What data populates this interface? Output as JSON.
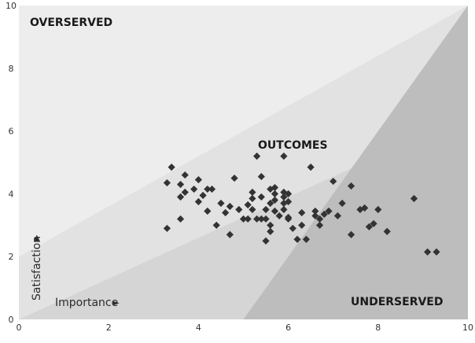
{
  "chart_data": {
    "type": "scatter",
    "title": "",
    "xlabel": "Importance",
    "ylabel": "Satisfaction",
    "xlabel_arrow": "►",
    "ylabel_arrow": "▲",
    "xlim": [
      0,
      10
    ],
    "ylim": [
      0,
      10
    ],
    "xticks": [
      0,
      2,
      4,
      6,
      8,
      10
    ],
    "yticks": [
      0,
      2,
      4,
      6,
      8,
      10
    ],
    "grid": false,
    "regions": {
      "overserved": "OVERSERVED",
      "outcomes": "OUTCOMES",
      "underserved": "UNDERSERVED"
    },
    "colors": {
      "overserved": "#ededed",
      "band_light": "#e2e2e2",
      "band_mid": "#d5d5d5",
      "underserved": "#bdbdbd",
      "marker": "#333333"
    },
    "points": [
      [
        3.3,
        4.35
      ],
      [
        3.4,
        4.85
      ],
      [
        3.3,
        2.9
      ],
      [
        3.6,
        3.9
      ],
      [
        3.6,
        4.3
      ],
      [
        3.7,
        4.05
      ],
      [
        3.7,
        4.6
      ],
      [
        3.6,
        3.2
      ],
      [
        3.9,
        4.15
      ],
      [
        4.0,
        3.75
      ],
      [
        4.0,
        4.45
      ],
      [
        4.1,
        3.95
      ],
      [
        4.2,
        4.15
      ],
      [
        4.2,
        3.45
      ],
      [
        4.3,
        4.15
      ],
      [
        4.4,
        3.0
      ],
      [
        4.5,
        3.7
      ],
      [
        4.6,
        3.4
      ],
      [
        4.7,
        3.6
      ],
      [
        4.7,
        2.7
      ],
      [
        4.8,
        4.5
      ],
      [
        4.9,
        3.5
      ],
      [
        5.0,
        3.2
      ],
      [
        5.1,
        3.2
      ],
      [
        5.1,
        3.65
      ],
      [
        5.2,
        3.5
      ],
      [
        5.2,
        4.05
      ],
      [
        5.2,
        3.85
      ],
      [
        5.3,
        3.2
      ],
      [
        5.3,
        5.2
      ],
      [
        5.4,
        3.2
      ],
      [
        5.4,
        4.55
      ],
      [
        5.4,
        3.9
      ],
      [
        5.5,
        3.5
      ],
      [
        5.5,
        2.5
      ],
      [
        5.5,
        3.2
      ],
      [
        5.6,
        3.0
      ],
      [
        5.6,
        2.8
      ],
      [
        5.6,
        3.7
      ],
      [
        5.6,
        4.15
      ],
      [
        5.7,
        4.0
      ],
      [
        5.7,
        4.2
      ],
      [
        5.7,
        3.45
      ],
      [
        5.7,
        3.8
      ],
      [
        5.8,
        3.3
      ],
      [
        5.9,
        3.7
      ],
      [
        5.9,
        4.05
      ],
      [
        5.9,
        3.9
      ],
      [
        5.9,
        3.5
      ],
      [
        5.9,
        5.2
      ],
      [
        6.0,
        3.25
      ],
      [
        6.0,
        4.0
      ],
      [
        6.0,
        3.75
      ],
      [
        6.0,
        3.2
      ],
      [
        6.1,
        2.9
      ],
      [
        6.2,
        2.55
      ],
      [
        6.3,
        3.0
      ],
      [
        6.3,
        3.4
      ],
      [
        6.4,
        2.55
      ],
      [
        6.5,
        4.85
      ],
      [
        6.6,
        3.45
      ],
      [
        6.6,
        3.3
      ],
      [
        6.7,
        3.2
      ],
      [
        6.7,
        3.0
      ],
      [
        6.8,
        3.35
      ],
      [
        6.9,
        3.45
      ],
      [
        7.0,
        4.4
      ],
      [
        7.1,
        3.3
      ],
      [
        7.2,
        3.7
      ],
      [
        7.4,
        2.7
      ],
      [
        7.4,
        4.25
      ],
      [
        7.6,
        3.5
      ],
      [
        7.7,
        3.55
      ],
      [
        7.8,
        2.95
      ],
      [
        7.9,
        3.05
      ],
      [
        8.0,
        3.5
      ],
      [
        8.2,
        2.8
      ],
      [
        8.8,
        3.85
      ],
      [
        9.1,
        2.15
      ],
      [
        9.3,
        2.15
      ]
    ]
  }
}
